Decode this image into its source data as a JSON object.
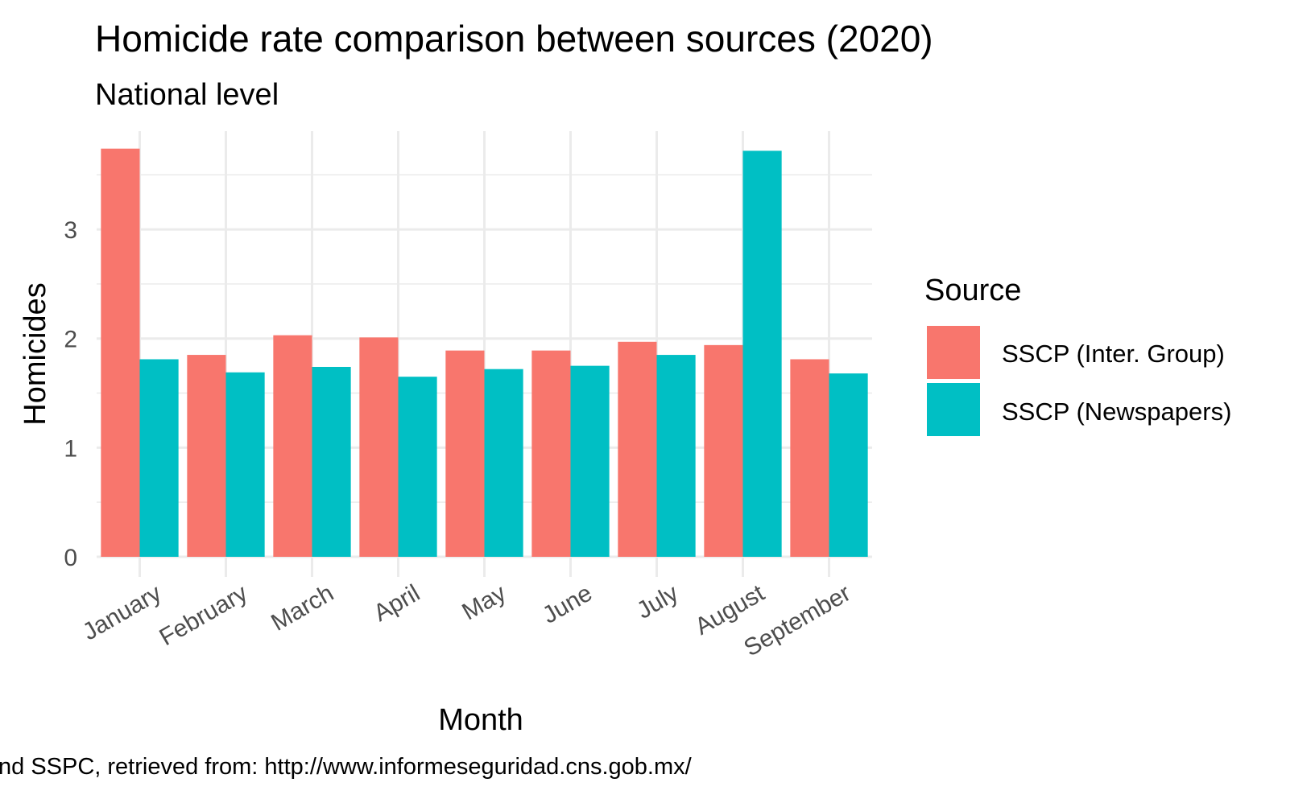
{
  "chart_data": {
    "type": "bar",
    "title": "Homicide rate comparison between sources (2020)",
    "subtitle": "National level",
    "xlabel": "Month",
    "ylabel": "Homicides",
    "caption": "nd SSPC, retrieved from: http://www.informeseguridad.cns.gob.mx/",
    "categories": [
      "January",
      "February",
      "March",
      "April",
      "May",
      "June",
      "July",
      "August",
      "September"
    ],
    "series": [
      {
        "name": "SSCP (Inter. Group)",
        "color": "#F8766D",
        "values": [
          3.74,
          1.85,
          2.03,
          2.01,
          1.89,
          1.89,
          1.97,
          1.94,
          1.81
        ]
      },
      {
        "name": "SSCP (Newspapers)",
        "color": "#00BFC4",
        "values": [
          1.81,
          1.69,
          1.74,
          1.65,
          1.72,
          1.75,
          1.85,
          3.72,
          1.68
        ]
      }
    ],
    "ylim": [
      0,
      3.9
    ],
    "yticks": [
      0,
      1,
      2,
      3
    ],
    "grid": true,
    "legend": {
      "title": "Source",
      "position": "right"
    }
  }
}
